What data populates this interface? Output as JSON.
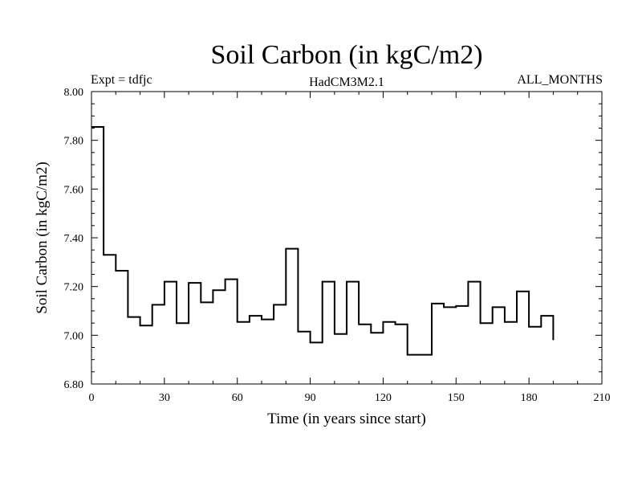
{
  "chart_data": {
    "type": "line",
    "title": "Soil Carbon (in kgC/m2)",
    "left_subtitle": "Expt = tdfjc",
    "center_subtitle": "HadCM3M2.1",
    "right_subtitle": "ALL_MONTHS",
    "xlabel": "Time (in years since start)",
    "ylabel": "Soil Carbon (in kgC/m2)",
    "xlim": [
      0,
      210
    ],
    "ylim": [
      6.8,
      8.0
    ],
    "x_ticks": [
      0,
      30,
      60,
      90,
      120,
      150,
      180,
      210
    ],
    "x_tick_labels": [
      "0",
      "30",
      "60",
      "90",
      "120",
      "150",
      "180",
      "210"
    ],
    "y_ticks": [
      6.8,
      7.0,
      7.2,
      7.4,
      7.6,
      7.8,
      8.0
    ],
    "y_tick_labels": [
      "6.80",
      "7.00",
      "7.20",
      "7.40",
      "7.60",
      "7.80",
      "8.00"
    ],
    "line_color": "#000000",
    "series": [
      {
        "step": true,
        "x": [
          0,
          5,
          10,
          15,
          20,
          25,
          30,
          35,
          40,
          45,
          50,
          55,
          60,
          65,
          70,
          75,
          80,
          85,
          90,
          95,
          100,
          105,
          110,
          115,
          120,
          125,
          130,
          135,
          140,
          145,
          150,
          155,
          160,
          165,
          170,
          175,
          180,
          185
        ],
        "values": [
          7.855,
          7.33,
          7.265,
          7.075,
          7.04,
          7.125,
          7.22,
          7.05,
          7.215,
          7.135,
          7.185,
          7.23,
          7.055,
          7.08,
          7.065,
          7.125,
          7.355,
          7.015,
          6.97,
          7.22,
          7.005,
          7.22,
          7.045,
          7.01,
          7.055,
          7.045,
          6.92,
          6.92,
          7.13,
          7.115,
          7.12,
          7.22,
          7.05,
          7.115,
          7.055,
          7.18,
          7.035,
          7.08
        ],
        "end_x": 190,
        "end_value": 6.98
      }
    ]
  }
}
